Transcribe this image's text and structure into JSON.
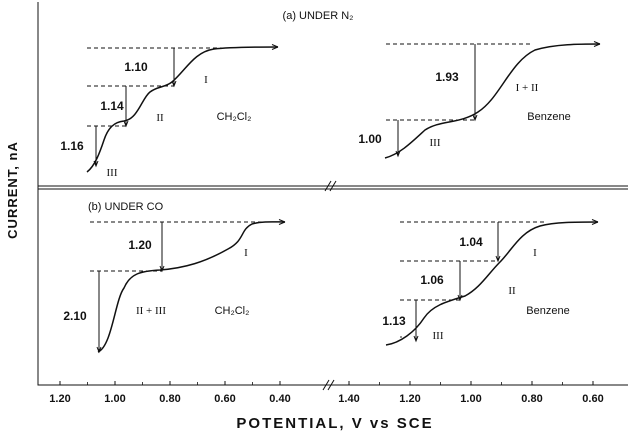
{
  "chart_data": {
    "type": "line",
    "ylabel": "CURRENT, nA",
    "xlabel": "POTENTIAL, V vs SCE",
    "x_ticks_left": [
      "1.20",
      "1.00",
      "0.80",
      "0.60",
      "0.40"
    ],
    "x_ticks_right": [
      "1.40",
      "1.20",
      "1.00",
      "0.80",
      "0.60"
    ],
    "panels": [
      {
        "id": "a",
        "title": "(a) UNDER N₂",
        "subplots": [
          {
            "solvent": "CH₂Cl₂",
            "waves": [
              {
                "label": "I",
                "height": "1.10"
              },
              {
                "label": "II",
                "height": "1.14"
              },
              {
                "label": "III",
                "height": "1.16"
              }
            ]
          },
          {
            "solvent": "Benzene",
            "waves": [
              {
                "label": "I + II",
                "height": "1.93"
              },
              {
                "label": "III",
                "height": "1.00"
              }
            ]
          }
        ]
      },
      {
        "id": "b",
        "title": "(b) UNDER CO",
        "subplots": [
          {
            "solvent": "CH₂Cl₂",
            "waves": [
              {
                "label": "I",
                "height": "1.20"
              },
              {
                "label": "II + III",
                "height": "2.10"
              }
            ]
          },
          {
            "solvent": "Benzene",
            "waves": [
              {
                "label": "I",
                "height": "1.04"
              },
              {
                "label": "II",
                "height": "1.06"
              },
              {
                "label": "III",
                "height": "1.13"
              }
            ]
          }
        ]
      }
    ]
  }
}
